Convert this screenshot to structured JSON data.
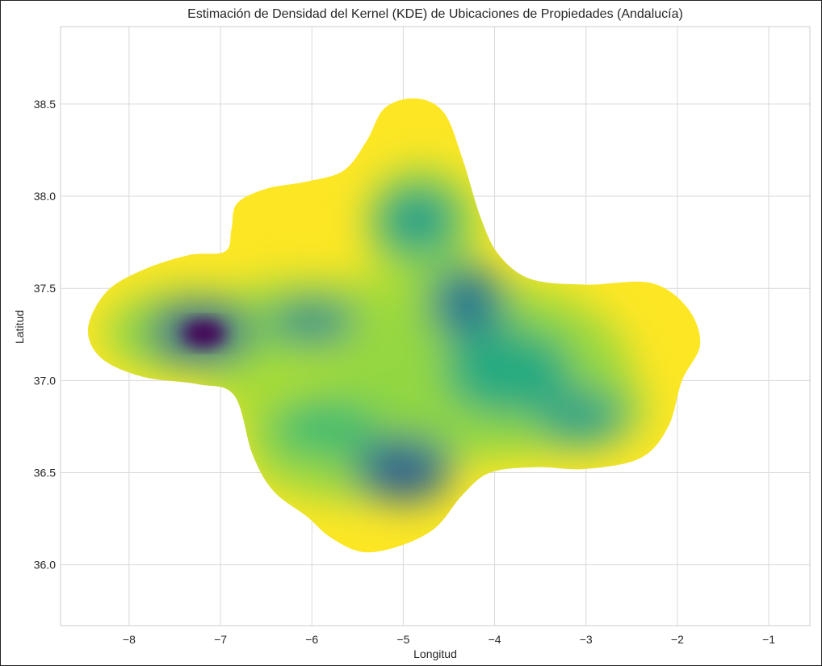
{
  "chart_data": {
    "type": "kde_density",
    "title": "Estimación de Densidad del Kernel (KDE) de Ubicaciones de Propiedades (Andalucía)",
    "xlabel": "Longitud",
    "ylabel": "Latitud",
    "xlim": [
      -8.75,
      -0.55
    ],
    "ylim": [
      35.67,
      38.92
    ],
    "x_ticks": [
      -8,
      -7,
      -6,
      -5,
      -4,
      -3,
      -2,
      -1
    ],
    "x_tick_labels": [
      "−8",
      "−7",
      "−6",
      "−5",
      "−4",
      "−3",
      "−2",
      "−1"
    ],
    "y_ticks": [
      36.0,
      36.5,
      37.0,
      37.5,
      38.0,
      38.5
    ],
    "y_tick_labels": [
      "36.0",
      "36.5",
      "37.0",
      "37.5",
      "38.0",
      "38.5"
    ],
    "grid": true,
    "colormap": "viridis",
    "fill": true,
    "density_peaks": [
      {
        "lon": -7.2,
        "lat": 37.26,
        "density": "highest"
      },
      {
        "lon": -5.0,
        "lat": 36.5,
        "density": "high"
      },
      {
        "lon": -4.85,
        "lat": 37.87,
        "density": "medium-high"
      },
      {
        "lon": -4.3,
        "lat": 37.42,
        "density": "medium-high"
      },
      {
        "lon": -3.75,
        "lat": 37.0,
        "density": "medium"
      },
      {
        "lon": -2.9,
        "lat": 36.8,
        "density": "medium"
      },
      {
        "lon": -6.0,
        "lat": 37.33,
        "density": "medium"
      },
      {
        "lon": -5.9,
        "lat": 36.75,
        "density": "medium-low"
      },
      {
        "lon": -6.5,
        "lat": 37.85,
        "density": "low"
      },
      {
        "lon": -2.3,
        "lat": 37.3,
        "density": "low"
      },
      {
        "lon": -4.85,
        "lat": 38.35,
        "density": "low"
      }
    ],
    "colors": {
      "grid": "#d9d9d9",
      "outline": "#fde725",
      "peak": "#440154"
    }
  }
}
